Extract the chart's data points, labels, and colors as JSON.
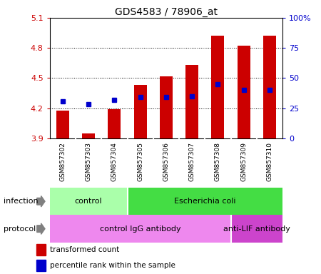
{
  "title": "GDS4583 / 78906_at",
  "samples": [
    "GSM857302",
    "GSM857303",
    "GSM857304",
    "GSM857305",
    "GSM857306",
    "GSM857307",
    "GSM857308",
    "GSM857309",
    "GSM857310"
  ],
  "bar_bottom": 3.9,
  "bar_tops": [
    4.175,
    3.95,
    4.19,
    4.43,
    4.52,
    4.63,
    4.92,
    4.82,
    4.92
  ],
  "blue_dot_y": [
    4.27,
    4.24,
    4.28,
    4.31,
    4.31,
    4.32,
    4.44,
    4.38,
    4.38
  ],
  "ylim_left": [
    3.9,
    5.1
  ],
  "ylim_right": [
    0,
    100
  ],
  "yticks_left": [
    3.9,
    4.2,
    4.5,
    4.8,
    5.1
  ],
  "yticks_right": [
    0,
    25,
    50,
    75,
    100
  ],
  "ytick_labels_left": [
    "3.9",
    "4.2",
    "4.5",
    "4.8",
    "5.1"
  ],
  "ytick_labels_right": [
    "0",
    "25",
    "50",
    "75",
    "100%"
  ],
  "bar_color": "#cc0000",
  "dot_color": "#0000cc",
  "infection_groups": [
    {
      "label": "control",
      "start": 0,
      "end": 3,
      "color": "#aaffaa"
    },
    {
      "label": "Escherichia coli",
      "start": 3,
      "end": 9,
      "color": "#44dd44"
    }
  ],
  "protocol_groups": [
    {
      "label": "control IgG antibody",
      "start": 0,
      "end": 7,
      "color": "#ee88ee"
    },
    {
      "label": "anti-LIF antibody",
      "start": 7,
      "end": 9,
      "color": "#cc44cc"
    }
  ],
  "legend_items": [
    {
      "color": "#cc0000",
      "label": "transformed count"
    },
    {
      "color": "#0000cc",
      "label": "percentile rank within the sample"
    }
  ],
  "background_color": "#ffffff",
  "tick_area_bg": "#cccccc",
  "grid_lines": [
    4.2,
    4.5,
    4.8
  ],
  "bar_width": 0.5
}
